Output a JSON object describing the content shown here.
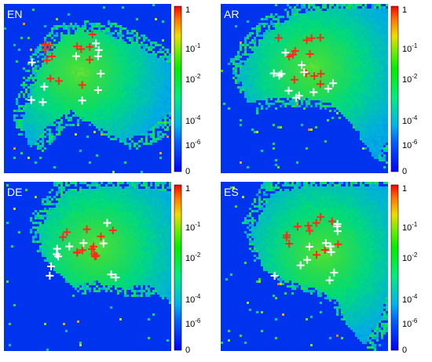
{
  "chart_data": [
    {
      "type": "heatmap",
      "panel_label": "EN",
      "colorbar": {
        "scale": "log",
        "range": [
          0,
          1
        ],
        "tick_labels": [
          "1",
          "10-1",
          "10-2",
          "10-4",
          "10-6",
          "0"
        ]
      },
      "red_crosses": 13,
      "white_crosses": 11
    },
    {
      "type": "heatmap",
      "panel_label": "AR",
      "colorbar": {
        "scale": "log",
        "range": [
          0,
          1
        ],
        "tick_labels": [
          "1",
          "10-1",
          "10-2",
          "10-4",
          "10-6",
          "0"
        ]
      },
      "red_crosses": 13,
      "white_crosses": 12
    },
    {
      "type": "heatmap",
      "panel_label": "DE",
      "colorbar": {
        "scale": "log",
        "range": [
          0,
          1
        ],
        "tick_labels": [
          "1",
          "10-1",
          "10-2",
          "10-4",
          "10-6",
          "0"
        ]
      },
      "red_crosses": 13,
      "white_crosses": 11
    },
    {
      "type": "heatmap",
      "panel_label": "ES",
      "colorbar": {
        "scale": "log",
        "range": [
          0,
          1
        ],
        "tick_labels": [
          "1",
          "10-1",
          "10-2",
          "10-4",
          "10-6",
          "0"
        ]
      },
      "red_crosses": 12,
      "white_crosses": 12
    }
  ],
  "colors": {
    "background": "#0033ee",
    "zero": "#0000ff",
    "low": "#00aaee",
    "mid": "#00ee00",
    "high": "#ff0000",
    "cross_red": "#ff2a1a",
    "cross_white": "#ffffff"
  }
}
